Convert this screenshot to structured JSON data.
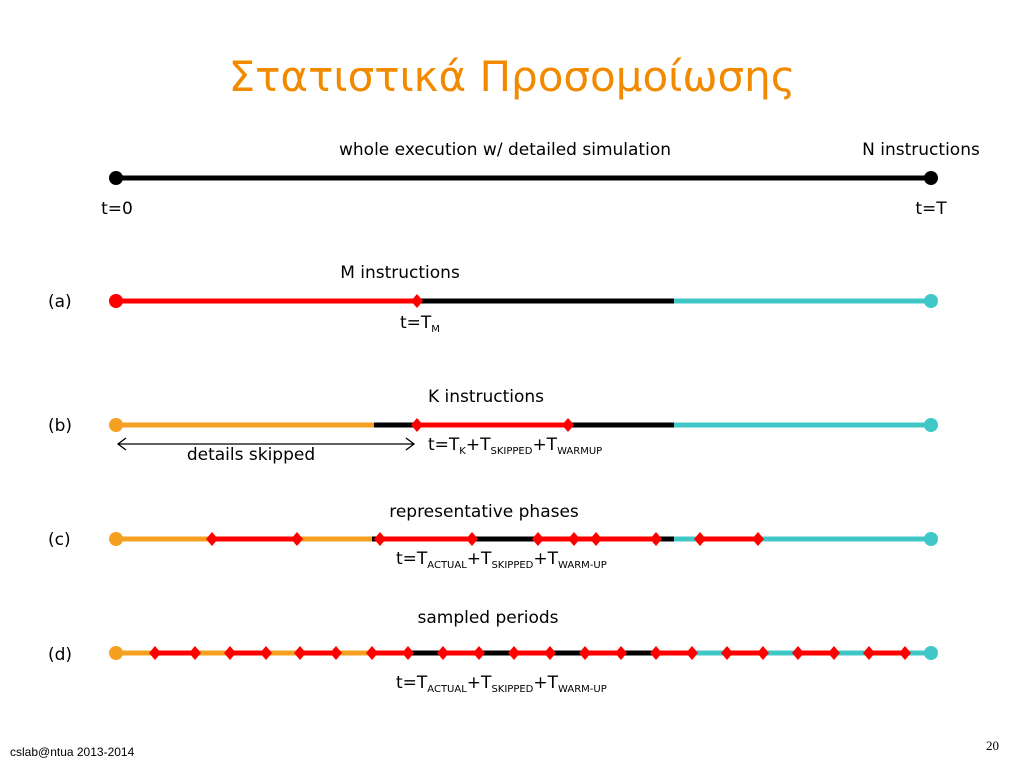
{
  "slide": {
    "title": "Στατιστικά Προσομοίωσης",
    "footer": "cslab@ntua 2013-2014",
    "page_number": "20"
  },
  "colors": {
    "detailed": "#ff0000",
    "fast_forward": "#000000",
    "skipped": "#f5a020",
    "remaining": "#40c8c8",
    "title": "#f28a00"
  },
  "diagram": {
    "top": {
      "label": "whole execution w/ detailed simulation",
      "right_label": "N instructions",
      "start_label": "t=0",
      "end_label": "t=T"
    },
    "a": {
      "row_label": "(a)",
      "label": "M instructions",
      "formula": [
        {
          "text": "t=T"
        },
        {
          "text": "M",
          "sub": true
        }
      ]
    },
    "b": {
      "row_label": "(b)",
      "label": "K instructions",
      "arrow_label": "details skipped",
      "formula": [
        {
          "text": "t=T"
        },
        {
          "text": "K",
          "sub": true
        },
        {
          "text": "+T"
        },
        {
          "text": "SKIPPED",
          "sub": true
        },
        {
          "text": "+T"
        },
        {
          "text": "WARMUP",
          "sub": true
        }
      ]
    },
    "c": {
      "row_label": "(c)",
      "label": "representative phases",
      "formula": [
        {
          "text": "t=T"
        },
        {
          "text": "ACTUAL",
          "sub": true
        },
        {
          "text": "+T"
        },
        {
          "text": "SKIPPED",
          "sub": true
        },
        {
          "text": "+T"
        },
        {
          "text": "WARM-UP",
          "sub": true
        }
      ]
    },
    "d": {
      "row_label": "(d)",
      "label": "sampled periods",
      "formula": [
        {
          "text": "t=T"
        },
        {
          "text": "ACTUAL",
          "sub": true
        },
        {
          "text": "+T"
        },
        {
          "text": "SKIPPED",
          "sub": true
        },
        {
          "text": "+T"
        },
        {
          "text": "WARM-UP",
          "sub": true
        }
      ]
    }
  }
}
